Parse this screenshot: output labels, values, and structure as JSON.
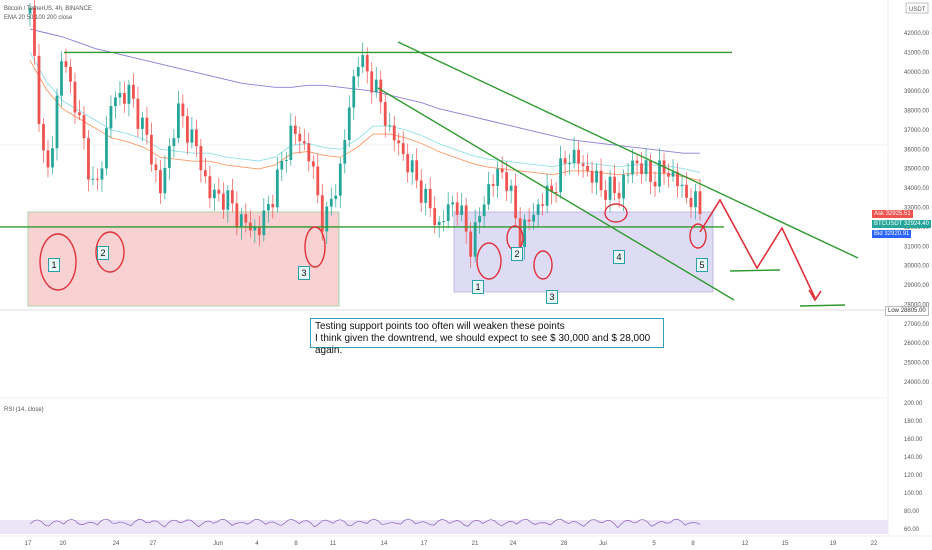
{
  "legend": {
    "symbol": "Bitcoin / TetherUS, 4h, BINANCE",
    "ema": "EMA 20 50 100 200 close",
    "rsi": "RSI (14, close)"
  },
  "currency": "USDT",
  "note": {
    "line1": "Testing support points too often will weaken these points",
    "line2": "I think given the downtrend, we should expect to see $ 30,000 and $ 28,000 again."
  },
  "price_tags": {
    "ask_label": "Ask",
    "ask_value": "32925.51",
    "symbol_label": "BTCUSDT",
    "symbol_value": "32924.40",
    "bid_label": "Bid",
    "bid_value": "32920.91",
    "low_label": "Low",
    "low_value": "28805.00"
  },
  "point_labels": {
    "left": [
      "1",
      "2",
      "3"
    ],
    "right": [
      "1",
      "2",
      "3",
      "4",
      "5"
    ]
  },
  "colors": {
    "trendline": "#2e9a2e",
    "projection": "#e0303a",
    "bull": "#26a69a",
    "bear": "#ef5350",
    "left_zone": "#f8d2d2",
    "right_zone": "#dedcf5",
    "rsi_band": "#ece5f7"
  },
  "chart_data": {
    "type": "line",
    "title": "Bitcoin / TetherUS, 4h, BINANCE",
    "xlabel": "",
    "ylabel": "",
    "x_ticks": [
      "17",
      "20",
      "24",
      "27",
      "Jun",
      "4",
      "8",
      "11",
      "14",
      "17",
      "21",
      "24",
      "28",
      "Jul",
      "5",
      "8",
      "12",
      "15",
      "19",
      "22"
    ],
    "y_ticks": [
      "42000.00",
      "41000.00",
      "40000.00",
      "39000.00",
      "38000.00",
      "37000.00",
      "36000.00",
      "35000.00",
      "34000.00",
      "33000.00",
      "32000.00",
      "31000.00",
      "30000.00",
      "29000.00",
      "28000.00",
      "27000.00",
      "26000.00",
      "25000.00",
      "24000.00"
    ],
    "ylim": [
      24000,
      43000
    ],
    "rsi_ticks": [
      "200.00",
      "180.00",
      "160.00",
      "140.00",
      "120.00",
      "100.00",
      "80.00",
      "60.00"
    ],
    "series": [
      {
        "values": [
          43000,
          34000,
          41000,
          37500,
          33500,
          38500,
          39000,
          37000,
          33800,
          38000,
          36500,
          33700,
          33500,
          32200,
          31800,
          34000,
          37000,
          36000,
          32000,
          35000,
          40800,
          39500,
          37000,
          35500,
          33800,
          32000,
          33500,
          31000,
          34000,
          35000,
          31500,
          33000,
          34000,
          35800,
          35000,
          34000,
          33800,
          35500,
          34500,
          35000,
          33800,
          32900
        ]
      },
      {
        "values": [
          41000,
          39500,
          38500,
          38000,
          37500,
          37000,
          36800,
          36500,
          36000,
          35900,
          35800,
          35800,
          35600,
          35500,
          35400,
          35600,
          36200,
          36300,
          36100,
          36000,
          36500,
          37200,
          37200,
          37000,
          36700,
          36300,
          36000,
          35700,
          35500,
          35400,
          35300,
          35200,
          35100,
          35300,
          35300,
          35200,
          35100,
          35200,
          35200,
          35150,
          35000,
          34800
        ]
      },
      {
        "values": [
          42200,
          42000,
          41800,
          41500,
          41200,
          41000,
          40800,
          40600,
          40400,
          40200,
          40000,
          39800,
          39600,
          39400,
          39300,
          39200,
          39200,
          39300,
          39300,
          39200,
          39100,
          39000,
          38800,
          38600,
          38400,
          38100,
          37900,
          37700,
          37500,
          37300,
          37100,
          36900,
          36700,
          36500,
          36400,
          36300,
          36200,
          36100,
          36000,
          35900,
          35800,
          35800
        ]
      }
    ],
    "horizontal_lines": [
      41000,
      32000
    ],
    "trendlines": [
      {
        "from": [
          14.5,
          41400
        ],
        "to": [
          15.2,
          31600
        ]
      },
      {
        "from": [
          13.9,
          39500
        ],
        "to": [
          14.9,
          29400
        ]
      }
    ],
    "projection": [
      32900,
      34800,
      31000,
      33700,
      29200
    ]
  }
}
